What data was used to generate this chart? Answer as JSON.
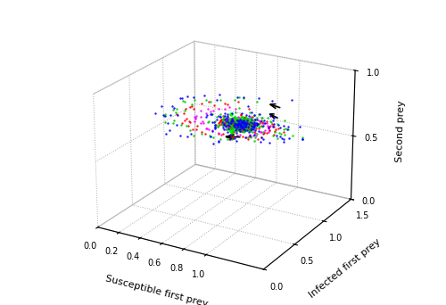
{
  "xlabel": "Susceptible first prey",
  "ylabel": "Infected first prey",
  "zlabel": "Second prey",
  "xlim": [
    0,
    1.5
  ],
  "ylim": [
    0,
    1.5
  ],
  "zlim": [
    0,
    1
  ],
  "xticks": [
    0,
    0.2,
    0.4,
    0.6,
    0.8,
    1.0
  ],
  "yticks": [
    0,
    0.5,
    1.0,
    1.5
  ],
  "zticks": [
    0,
    0.5,
    1.0
  ],
  "eq": [
    0.58,
    1.27,
    0.5
  ],
  "colors": [
    "blue",
    "#00cc00",
    "red",
    "magenta"
  ],
  "n_spirals": 4,
  "figsize": [
    5.0,
    3.42
  ],
  "dpi": 100,
  "dot_size": 3,
  "elev": 22,
  "azim": -60,
  "sigma": [
    0.04,
    0.03,
    0.02,
    0.01
  ],
  "arrow_color": "black"
}
